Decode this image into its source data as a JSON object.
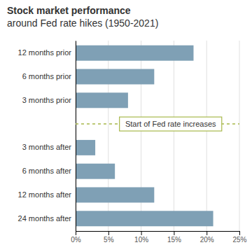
{
  "chart_data": {
    "type": "bar",
    "orientation": "horizontal",
    "title": [
      "Stock market performance",
      "around Fed rate hikes (1950-2021)"
    ],
    "categories": [
      "12 months prior",
      "6 months prior",
      "3 months prior",
      null,
      "3 months after",
      "6 months after",
      "12 months after",
      "24 months after"
    ],
    "values": [
      18.0,
      12.0,
      8.0,
      null,
      3.0,
      6.0,
      12.0,
      21.0
    ],
    "color": "#7fa0b5",
    "annotation": "Start of Fed rate increases",
    "xlim": [
      0,
      25
    ],
    "xticks": [
      {
        "value": 0,
        "label": "0%"
      },
      {
        "value": 5,
        "label": "5%"
      },
      {
        "value": 10,
        "label": "10%"
      },
      {
        "value": 15,
        "label": "15%"
      },
      {
        "value": 20,
        "label": "20%"
      },
      {
        "value": 25,
        "label": "25%"
      }
    ],
    "grid": true
  }
}
